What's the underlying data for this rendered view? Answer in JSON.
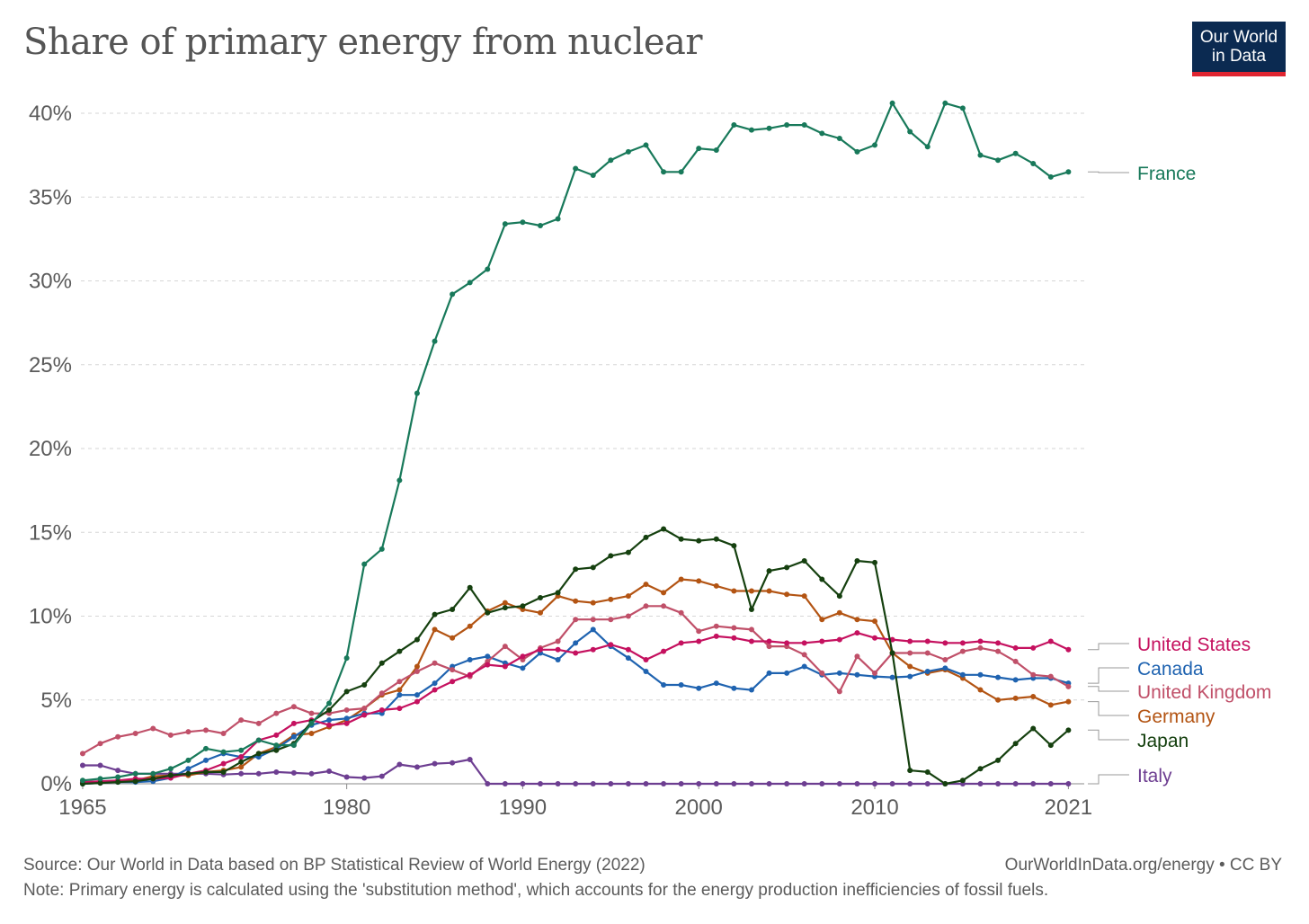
{
  "title": "Share of primary energy from nuclear",
  "logo": {
    "line1": "Our World",
    "line2": "in Data"
  },
  "footer": {
    "source": "Source: Our World in Data based on BP Statistical Review of World Energy (2022)",
    "link": "OurWorldInData.org/energy • CC BY",
    "note": "Note: Primary energy is calculated using the 'substitution method', which accounts for the energy production inefficiencies of fossil fuels."
  },
  "chart_data": {
    "type": "line",
    "title": "Share of primary energy from nuclear",
    "xlabel": "",
    "ylabel": "",
    "xlim": [
      1965,
      2021
    ],
    "ylim": [
      0,
      40
    ],
    "x_ticks": [
      1965,
      1980,
      1990,
      2000,
      2010,
      2021
    ],
    "y_ticks": [
      0,
      5,
      10,
      15,
      20,
      25,
      30,
      35,
      40
    ],
    "y_tick_labels": [
      "0%",
      "5%",
      "10%",
      "15%",
      "20%",
      "25%",
      "30%",
      "35%",
      "40%"
    ],
    "grid": "horizontal dashed",
    "legend": "right, inline labels",
    "series": [
      {
        "name": "Italy",
        "color": "#6d3e91",
        "x": [
          1965,
          1966,
          1967,
          1968,
          1969,
          1970,
          1971,
          1972,
          1973,
          1974,
          1975,
          1976,
          1977,
          1978,
          1979,
          1980,
          1981,
          1982,
          1983,
          1984,
          1985,
          1986,
          1987,
          1988,
          1989,
          1990,
          1991,
          1992,
          1993,
          1994,
          1995,
          1996,
          1997,
          1998,
          1999,
          2000,
          2001,
          2002,
          2003,
          2004,
          2005,
          2006,
          2007,
          2008,
          2009,
          2010,
          2011,
          2012,
          2013,
          2014,
          2015,
          2016,
          2017,
          2018,
          2019,
          2020,
          2021
        ],
        "y": [
          1.1,
          1.1,
          0.8,
          0.6,
          0.6,
          0.6,
          0.6,
          0.6,
          0.55,
          0.6,
          0.6,
          0.7,
          0.65,
          0.6,
          0.75,
          0.4,
          0.35,
          0.45,
          1.15,
          1.0,
          1.2,
          1.25,
          1.45,
          0,
          0,
          0,
          0,
          0,
          0,
          0,
          0,
          0,
          0,
          0,
          0,
          0,
          0,
          0,
          0,
          0,
          0,
          0,
          0,
          0,
          0,
          0,
          0,
          0,
          0,
          0,
          0,
          0,
          0,
          0,
          0,
          0,
          0
        ]
      },
      {
        "name": "Germany",
        "color": "#b35413",
        "x": [
          1965,
          1966,
          1967,
          1968,
          1969,
          1970,
          1971,
          1972,
          1973,
          1974,
          1975,
          1976,
          1977,
          1978,
          1979,
          1980,
          1981,
          1982,
          1983,
          1984,
          1985,
          1986,
          1987,
          1988,
          1989,
          1990,
          1991,
          1992,
          1993,
          1994,
          1995,
          1996,
          1997,
          1998,
          1999,
          2000,
          2001,
          2002,
          2003,
          2004,
          2005,
          2006,
          2007,
          2008,
          2009,
          2010,
          2011,
          2012,
          2013,
          2014,
          2015,
          2016,
          2017,
          2018,
          2019,
          2020,
          2021
        ],
        "y": [
          0.05,
          0.1,
          0.15,
          0.2,
          0.45,
          0.5,
          0.5,
          0.7,
          0.8,
          1.0,
          1.8,
          2.2,
          2.9,
          3.0,
          3.4,
          3.8,
          4.5,
          5.3,
          5.6,
          7.0,
          9.2,
          8.7,
          9.4,
          10.3,
          10.8,
          10.4,
          10.2,
          11.2,
          10.9,
          10.8,
          11.0,
          11.2,
          11.9,
          11.4,
          12.2,
          12.1,
          11.8,
          11.5,
          11.5,
          11.5,
          11.3,
          11.2,
          9.8,
          10.2,
          9.8,
          9.7,
          7.8,
          7.0,
          6.6,
          6.8,
          6.3,
          5.6,
          5.0,
          5.1,
          5.2,
          4.7,
          4.9
        ]
      },
      {
        "name": "Canada",
        "color": "#1f63b0",
        "x": [
          1965,
          1966,
          1967,
          1968,
          1969,
          1970,
          1971,
          1972,
          1973,
          1974,
          1975,
          1976,
          1977,
          1978,
          1979,
          1980,
          1981,
          1982,
          1983,
          1984,
          1985,
          1986,
          1987,
          1988,
          1989,
          1990,
          1991,
          1992,
          1993,
          1994,
          1995,
          1996,
          1997,
          1998,
          1999,
          2000,
          2001,
          2002,
          2003,
          2004,
          2005,
          2006,
          2007,
          2008,
          2009,
          2010,
          2011,
          2012,
          2013,
          2014,
          2015,
          2016,
          2017,
          2018,
          2019,
          2020,
          2021
        ],
        "y": [
          0.0,
          0.05,
          0.1,
          0.1,
          0.15,
          0.35,
          0.9,
          1.4,
          1.8,
          1.6,
          1.6,
          2.1,
          2.8,
          3.5,
          3.8,
          3.9,
          4.2,
          4.2,
          5.3,
          5.3,
          6.0,
          7.0,
          7.4,
          7.6,
          7.2,
          6.9,
          7.8,
          7.4,
          8.4,
          9.2,
          8.2,
          7.5,
          6.7,
          5.9,
          5.9,
          5.7,
          6.0,
          5.7,
          5.6,
          6.6,
          6.6,
          7.0,
          6.5,
          6.6,
          6.5,
          6.4,
          6.35,
          6.4,
          6.7,
          6.9,
          6.5,
          6.5,
          6.35,
          6.2,
          6.3,
          6.3,
          6.0
        ]
      },
      {
        "name": "United Kingdom",
        "color": "#c05069",
        "x": [
          1965,
          1966,
          1967,
          1968,
          1969,
          1970,
          1971,
          1972,
          1973,
          1974,
          1975,
          1976,
          1977,
          1978,
          1979,
          1980,
          1981,
          1982,
          1983,
          1984,
          1985,
          1986,
          1987,
          1988,
          1989,
          1990,
          1991,
          1992,
          1993,
          1994,
          1995,
          1996,
          1997,
          1998,
          1999,
          2000,
          2001,
          2002,
          2003,
          2004,
          2005,
          2006,
          2007,
          2008,
          2009,
          2010,
          2011,
          2012,
          2013,
          2014,
          2015,
          2016,
          2017,
          2018,
          2019,
          2020,
          2021
        ],
        "y": [
          1.8,
          2.4,
          2.8,
          3.0,
          3.3,
          2.9,
          3.1,
          3.2,
          3.0,
          3.8,
          3.6,
          4.2,
          4.6,
          4.2,
          4.2,
          4.4,
          4.5,
          5.4,
          6.1,
          6.7,
          7.2,
          6.8,
          6.4,
          7.3,
          8.2,
          7.4,
          8.1,
          8.5,
          9.8,
          9.8,
          9.8,
          10.0,
          10.6,
          10.6,
          10.2,
          9.1,
          9.4,
          9.3,
          9.2,
          8.2,
          8.2,
          7.7,
          6.6,
          5.5,
          7.6,
          6.6,
          7.8,
          7.8,
          7.8,
          7.4,
          7.9,
          8.1,
          7.9,
          7.3,
          6.5,
          6.4,
          5.8
        ]
      },
      {
        "name": "United States",
        "color": "#c5115f",
        "x": [
          1965,
          1966,
          1967,
          1968,
          1969,
          1970,
          1971,
          1972,
          1973,
          1974,
          1975,
          1976,
          1977,
          1978,
          1979,
          1980,
          1981,
          1982,
          1983,
          1984,
          1985,
          1986,
          1987,
          1988,
          1989,
          1990,
          1991,
          1992,
          1993,
          1994,
          1995,
          1996,
          1997,
          1998,
          1999,
          2000,
          2001,
          2002,
          2003,
          2004,
          2005,
          2006,
          2007,
          2008,
          2009,
          2010,
          2011,
          2012,
          2013,
          2014,
          2015,
          2016,
          2017,
          2018,
          2019,
          2020,
          2021
        ],
        "y": [
          0.1,
          0.15,
          0.2,
          0.3,
          0.3,
          0.35,
          0.6,
          0.8,
          1.2,
          1.6,
          2.6,
          2.9,
          3.6,
          3.8,
          3.5,
          3.6,
          4.1,
          4.4,
          4.5,
          4.9,
          5.6,
          6.1,
          6.5,
          7.1,
          7.0,
          7.6,
          8.0,
          8.0,
          7.8,
          8.0,
          8.3,
          8.0,
          7.4,
          7.9,
          8.4,
          8.5,
          8.8,
          8.7,
          8.5,
          8.5,
          8.4,
          8.4,
          8.5,
          8.6,
          9.0,
          8.7,
          8.6,
          8.5,
          8.5,
          8.4,
          8.4,
          8.5,
          8.4,
          8.1,
          8.1,
          8.5,
          8.0
        ]
      },
      {
        "name": "Japan",
        "color": "#15400f",
        "x": [
          1965,
          1966,
          1967,
          1968,
          1969,
          1970,
          1971,
          1972,
          1973,
          1974,
          1975,
          1976,
          1977,
          1978,
          1979,
          1980,
          1981,
          1982,
          1983,
          1984,
          1985,
          1986,
          1987,
          1988,
          1989,
          1990,
          1991,
          1992,
          1993,
          1994,
          1995,
          1996,
          1997,
          1998,
          1999,
          2000,
          2001,
          2002,
          2003,
          2004,
          2005,
          2006,
          2007,
          2008,
          2009,
          2010,
          2011,
          2012,
          2013,
          2014,
          2015,
          2016,
          2017,
          2018,
          2019,
          2020,
          2021
        ],
        "y": [
          0.0,
          0.05,
          0.1,
          0.15,
          0.3,
          0.5,
          0.6,
          0.7,
          0.7,
          1.3,
          1.8,
          2.0,
          2.4,
          3.7,
          4.4,
          5.5,
          5.9,
          7.2,
          7.9,
          8.6,
          10.1,
          10.4,
          11.7,
          10.2,
          10.5,
          10.6,
          11.1,
          11.4,
          12.8,
          12.9,
          13.6,
          13.8,
          14.7,
          15.2,
          14.6,
          14.5,
          14.6,
          14.2,
          10.4,
          12.7,
          12.9,
          13.3,
          12.2,
          11.2,
          13.3,
          13.2,
          7.8,
          0.8,
          0.7,
          0.0,
          0.2,
          0.9,
          1.4,
          2.4,
          3.3,
          2.3,
          3.2
        ]
      },
      {
        "name": "France",
        "color": "#18795a",
        "x": [
          1965,
          1966,
          1967,
          1968,
          1969,
          1970,
          1971,
          1972,
          1973,
          1974,
          1975,
          1976,
          1977,
          1978,
          1979,
          1980,
          1981,
          1982,
          1983,
          1984,
          1985,
          1986,
          1987,
          1988,
          1989,
          1990,
          1991,
          1992,
          1993,
          1994,
          1995,
          1996,
          1997,
          1998,
          1999,
          2000,
          2001,
          2002,
          2003,
          2004,
          2005,
          2006,
          2007,
          2008,
          2009,
          2010,
          2011,
          2012,
          2013,
          2014,
          2015,
          2016,
          2017,
          2018,
          2019,
          2020,
          2021
        ],
        "y": [
          0.2,
          0.3,
          0.4,
          0.6,
          0.6,
          0.9,
          1.4,
          2.1,
          1.9,
          2.0,
          2.6,
          2.3,
          2.3,
          3.6,
          4.8,
          7.5,
          13.1,
          14.0,
          18.1,
          23.3,
          26.4,
          29.2,
          29.9,
          30.7,
          33.4,
          33.5,
          33.3,
          33.7,
          36.7,
          36.3,
          37.2,
          37.7,
          38.1,
          36.5,
          36.5,
          37.9,
          37.8,
          39.3,
          39.0,
          39.1,
          39.3,
          39.3,
          38.8,
          38.5,
          37.7,
          38.1,
          40.6,
          38.9,
          38.0,
          40.6,
          40.3,
          37.5,
          37.2,
          37.6,
          37.0,
          36.2,
          36.5
        ]
      }
    ],
    "labels": [
      {
        "name": "France",
        "text": "France"
      },
      {
        "name": "United States",
        "text": "United States"
      },
      {
        "name": "Canada",
        "text": "Canada"
      },
      {
        "name": "United Kingdom",
        "text": "United Kingdom"
      },
      {
        "name": "Germany",
        "text": "Germany"
      },
      {
        "name": "Japan",
        "text": "Japan"
      },
      {
        "name": "Italy",
        "text": "Italy"
      }
    ]
  }
}
